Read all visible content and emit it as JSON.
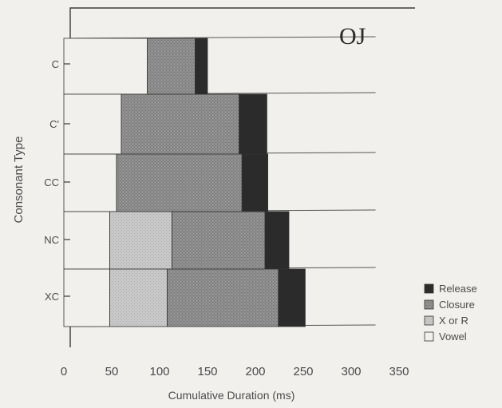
{
  "chart_data": {
    "type": "bar",
    "orientation": "horizontal",
    "stacked": true,
    "title": "OJ",
    "xlabel": "Cumulative Duration (ms)",
    "ylabel": "Consonant Type",
    "xlim": [
      0,
      350
    ],
    "xticks": [
      0,
      50,
      100,
      150,
      200,
      250,
      300,
      350
    ],
    "categories": [
      "c",
      "c'",
      "cc",
      "nc",
      "xc"
    ],
    "category_labels": [
      "C",
      "C'",
      "CC",
      "NC",
      "XC"
    ],
    "series": [
      {
        "name": "Vowel",
        "start": [
          0,
          0,
          0,
          0,
          0
        ],
        "end": [
          87,
          60,
          55,
          48,
          48
        ]
      },
      {
        "name": "X or R",
        "start": [
          null,
          null,
          null,
          48,
          48
        ],
        "end": [
          null,
          null,
          null,
          113,
          108
        ]
      },
      {
        "name": "Closure",
        "start": [
          87,
          60,
          55,
          113,
          108
        ],
        "end": [
          137,
          183,
          186,
          210,
          224
        ]
      },
      {
        "name": "Release",
        "start": [
          137,
          183,
          186,
          210,
          224
        ],
        "end": [
          150,
          212,
          213,
          235,
          252
        ]
      }
    ],
    "legend": {
      "position": "bottom-right",
      "entries": [
        "Release",
        "Closure",
        "X or R",
        "Vowel"
      ]
    },
    "colors": {
      "Release": "#2b2b2b",
      "Closure": "#8a8a8a",
      "X or R": "#c4c4c4",
      "Vowel": "#f2f0ec",
      "axis": "#3a3a3a",
      "text": "#4a4a4a"
    }
  }
}
